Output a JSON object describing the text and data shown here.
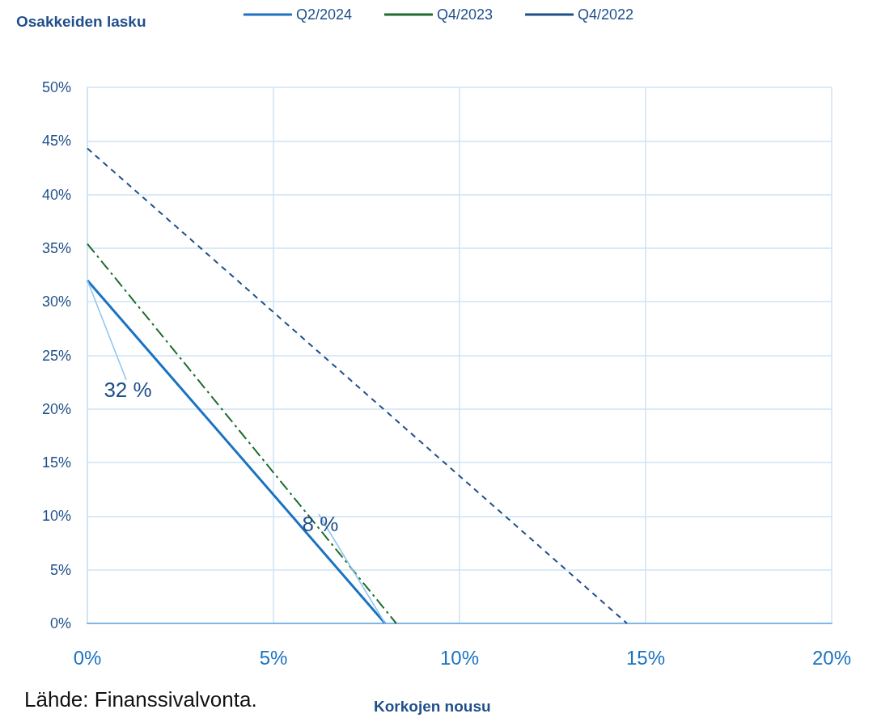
{
  "chart_data": {
    "type": "line",
    "ylabel": "Osakkeiden lasku",
    "xlabel": "Korkojen nousu",
    "xlim": [
      0,
      20
    ],
    "xticks": [
      {
        "value": 0,
        "label": "0%"
      },
      {
        "value": 5,
        "label": "5%"
      },
      {
        "value": 10,
        "label": "10%"
      },
      {
        "value": 15,
        "label": "15%"
      },
      {
        "value": 20,
        "label": "20%"
      }
    ],
    "ylim": [
      0,
      50
    ],
    "yticks": [
      {
        "value": 0,
        "label": "0%"
      },
      {
        "value": 5,
        "label": "5%"
      },
      {
        "value": 10,
        "label": "10%"
      },
      {
        "value": 15,
        "label": "15%"
      },
      {
        "value": 20,
        "label": "20%"
      },
      {
        "value": 25,
        "label": "25%"
      },
      {
        "value": 30,
        "label": "30%"
      },
      {
        "value": 35,
        "label": "35%"
      },
      {
        "value": 40,
        "label": "40%"
      },
      {
        "value": 45,
        "label": "45%"
      },
      {
        "value": 50,
        "label": "50%"
      }
    ],
    "series": [
      {
        "name": "Q2/2024",
        "color": "#1a72c1",
        "line_style": "solid",
        "x": [
          0,
          8
        ],
        "values": [
          32,
          0
        ]
      },
      {
        "name": "Q4/2023",
        "color": "#1d6b2e",
        "line_style": "dashdot",
        "x": [
          0,
          8.3
        ],
        "values": [
          35.4,
          0
        ]
      },
      {
        "name": "Q4/2022",
        "color": "#1f4f8a",
        "line_style": "dashed",
        "x": [
          0,
          14.5
        ],
        "values": [
          44.3,
          0
        ]
      }
    ],
    "annotations": [
      {
        "text": "32 %",
        "x": 0,
        "y": 32
      },
      {
        "text": "8 %",
        "x": 8,
        "y": 0
      },
      "Lähde: Finanssivalvonta."
    ],
    "grid": true,
    "legend": "top",
    "marker": "none"
  }
}
